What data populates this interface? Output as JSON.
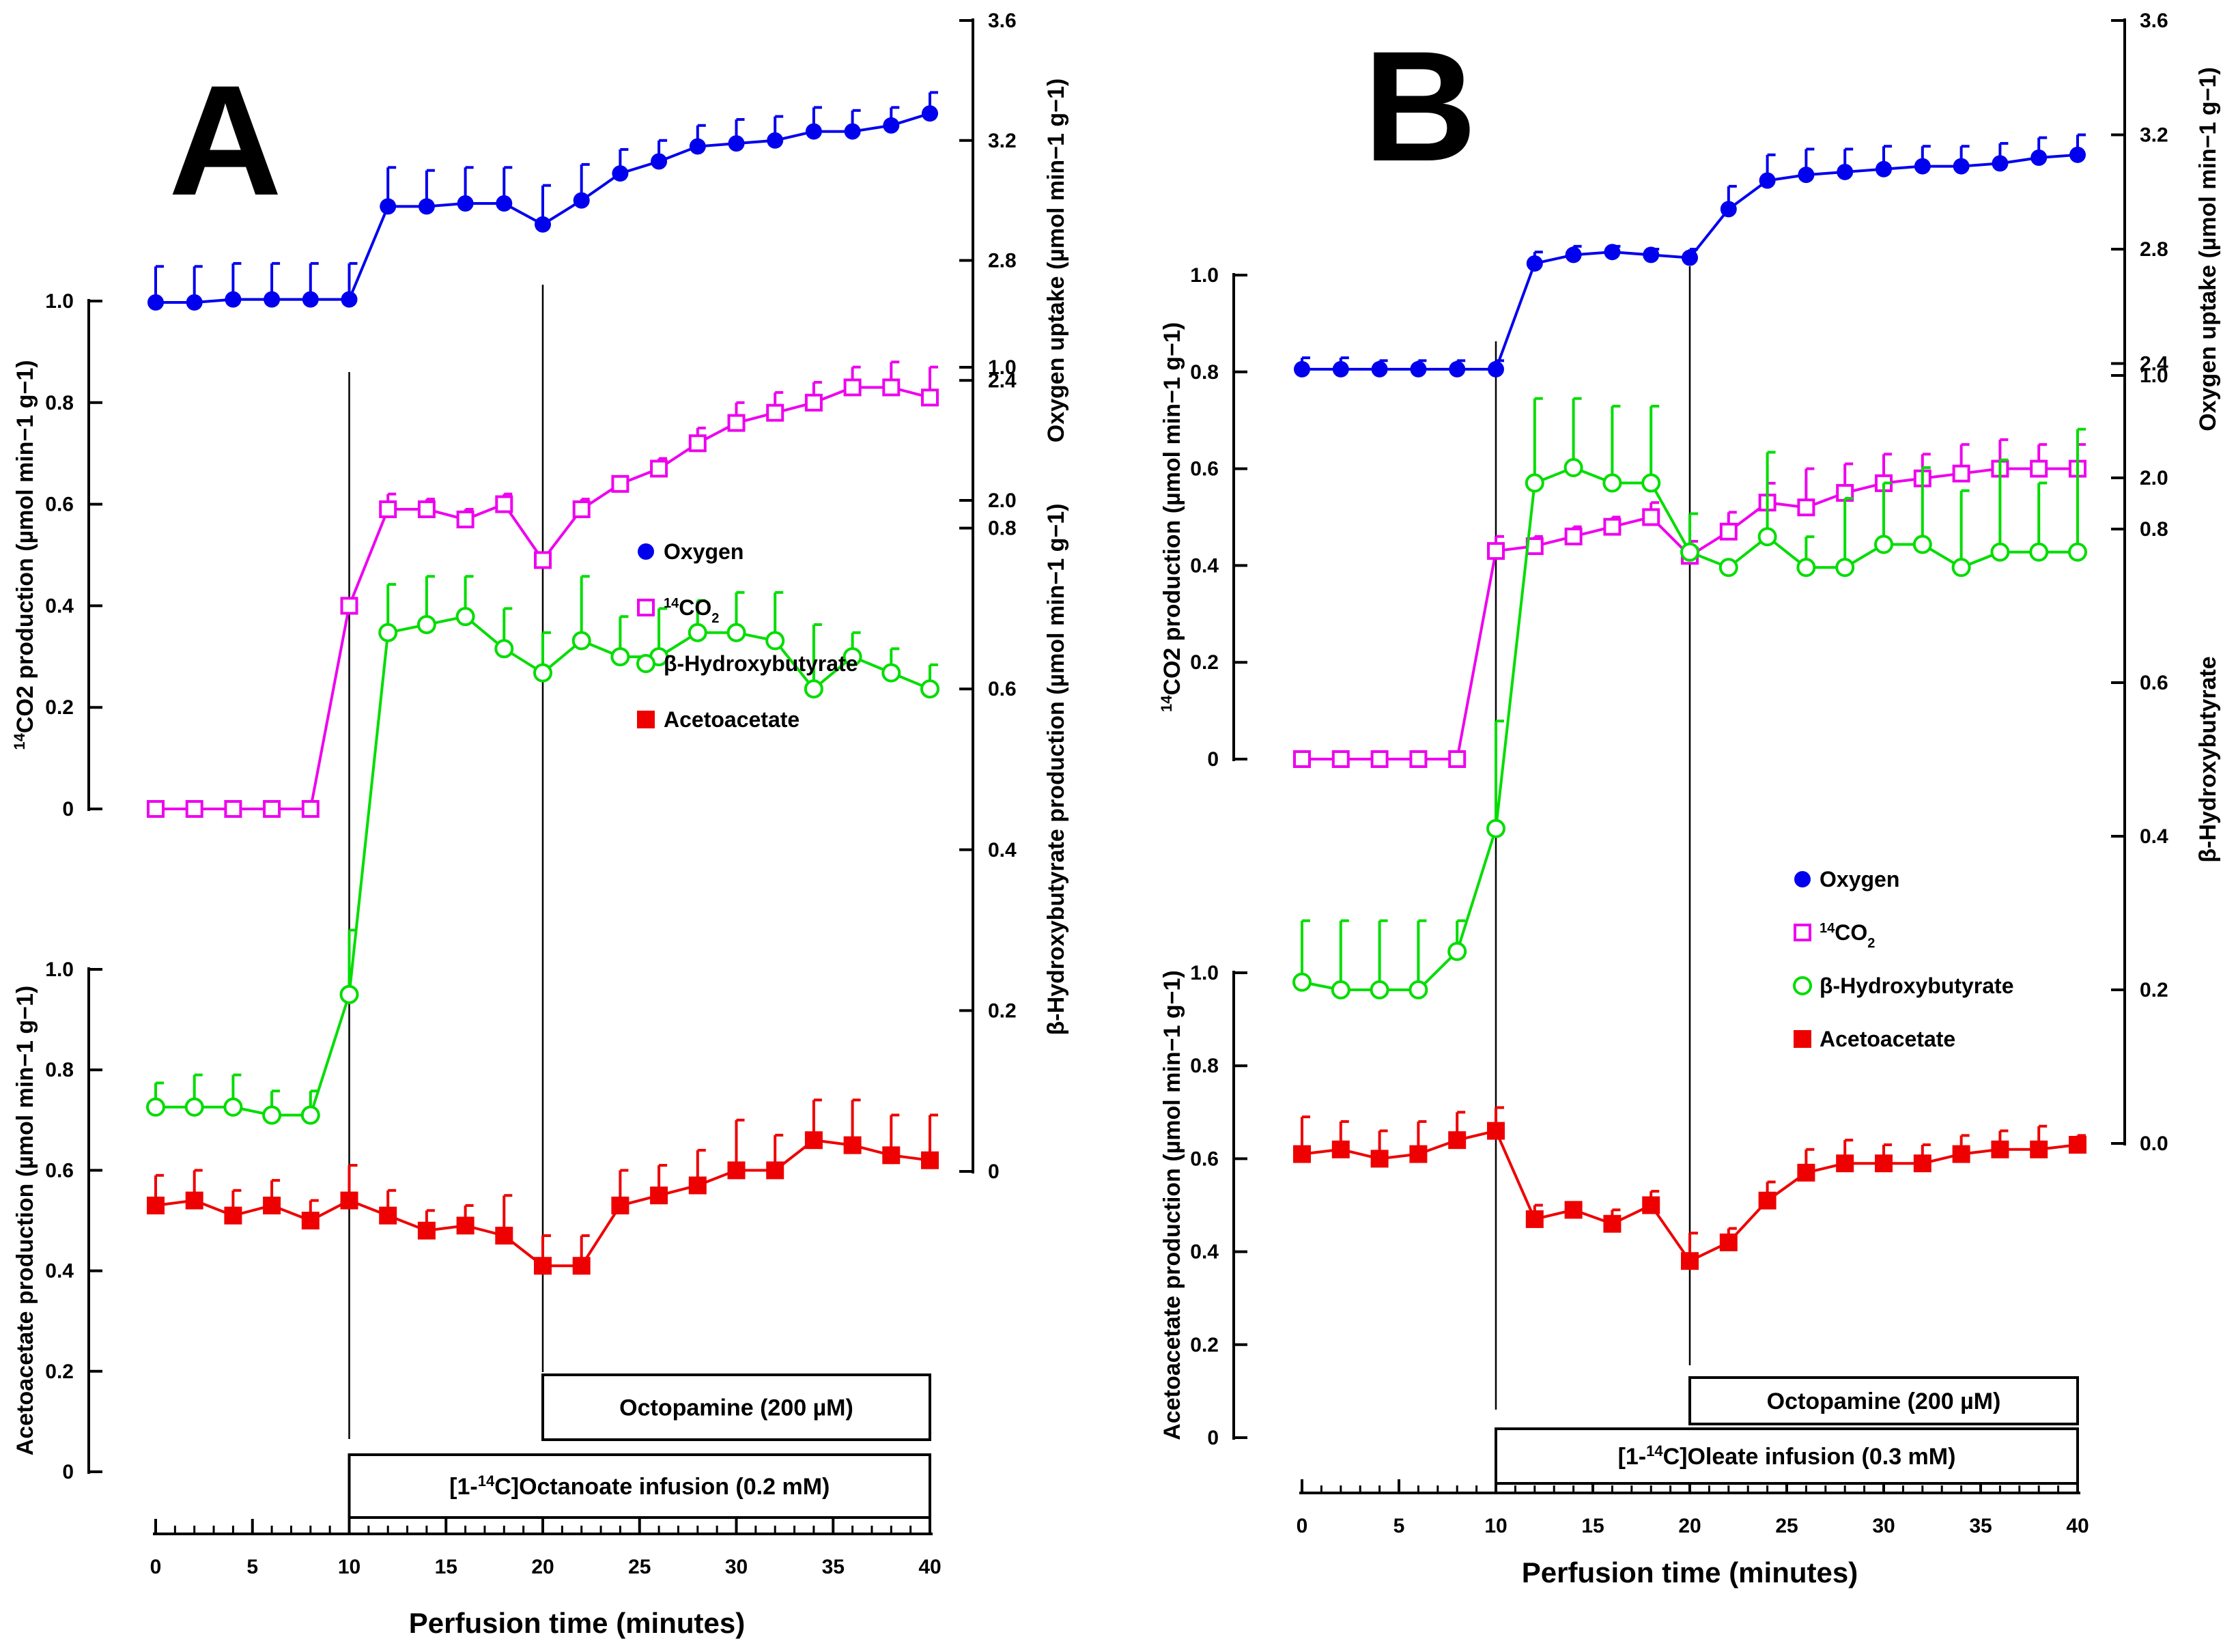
{
  "colors": {
    "oxygen": "#0000ee",
    "co2": "#ee00ee",
    "hydroxybutyrate": "#00dd00",
    "acetoacetate": "#ee0000"
  },
  "chart_data": [
    {
      "type": "line",
      "panel": "A",
      "xlabel": "Perfusion time (minutes)",
      "xlim": [
        0,
        40
      ],
      "x_ticks": [
        "0",
        "5",
        "10",
        "15",
        "20",
        "25",
        "30",
        "35",
        "40"
      ],
      "axes": {
        "co2": {
          "label_pre": "14",
          "label_main": "CO2 production (µmol min−1 g−1)",
          "ylim": [
            0,
            1.0
          ],
          "ticks": [
            "0",
            "0.2",
            "0.4",
            "0.6",
            "0.8",
            "1.0"
          ]
        },
        "oxygen": {
          "label": "Oxygen uptake (µmol min−1 g−1)",
          "ylim": [
            2.0,
            3.6
          ],
          "ticks": [
            "2.0",
            "2.4",
            "2.8",
            "3.2",
            "3.6"
          ]
        },
        "hydroxybutyrate": {
          "label": "β-Hydroxybutyrate production (µmol min−1 g−1)",
          "ylim": [
            0,
            1.0
          ],
          "ticks": [
            "0",
            "0.2",
            "0.4",
            "0.6",
            "0.8",
            "1.0"
          ]
        },
        "acetoacetate": {
          "label": "Acetoacetate production (µmol min−1 g−1)",
          "ylim": [
            0,
            1.0
          ],
          "ticks": [
            "0",
            "0.2",
            "0.4",
            "0.6",
            "0.8",
            "1.0"
          ]
        }
      },
      "x": [
        0,
        2,
        4,
        6,
        8,
        10,
        12,
        14,
        16,
        18,
        20,
        22,
        24,
        26,
        28,
        30,
        32,
        34,
        36,
        38,
        40
      ],
      "series": [
        {
          "name": "Oxygen",
          "key": "oxygen",
          "marker": "circle-filled",
          "values": [
            2.66,
            2.66,
            2.67,
            2.67,
            2.67,
            2.67,
            2.98,
            2.98,
            2.99,
            2.99,
            2.92,
            3.0,
            3.09,
            3.13,
            3.18,
            3.19,
            3.2,
            3.23,
            3.23,
            3.25,
            3.29
          ],
          "errors": [
            0.12,
            0.12,
            0.12,
            0.12,
            0.12,
            0.12,
            0.13,
            0.12,
            0.12,
            0.12,
            0.13,
            0.12,
            0.08,
            0.07,
            0.07,
            0.08,
            0.08,
            0.08,
            0.07,
            0.06,
            0.07
          ]
        },
        {
          "name": "14CO2",
          "key": "co2",
          "marker": "square-open",
          "values": [
            0,
            0,
            0,
            0,
            0,
            0.4,
            0.59,
            0.59,
            0.57,
            0.6,
            0.49,
            0.59,
            0.64,
            0.67,
            0.72,
            0.76,
            0.78,
            0.8,
            0.83,
            0.83,
            0.81
          ],
          "errors": [
            0,
            0,
            0,
            0,
            0,
            0,
            0.03,
            0.02,
            0.02,
            0.02,
            0,
            0.02,
            0.01,
            0.02,
            0.03,
            0.04,
            0.04,
            0.04,
            0.04,
            0.05,
            0.06
          ]
        },
        {
          "name": "β-Hydroxybutyrate",
          "key": "hydroxybutyrate",
          "marker": "circle-open",
          "values": [
            0.08,
            0.08,
            0.08,
            0.07,
            0.07,
            0.22,
            0.67,
            0.68,
            0.69,
            0.65,
            0.62,
            0.66,
            0.64,
            0.64,
            0.67,
            0.67,
            0.66,
            0.6,
            0.64,
            0.62,
            0.6
          ],
          "errors": [
            0.03,
            0.04,
            0.04,
            0.03,
            0.03,
            0.08,
            0.06,
            0.06,
            0.05,
            0.05,
            0.05,
            0.08,
            0.05,
            0.06,
            0.04,
            0.05,
            0.06,
            0.08,
            0.03,
            0.03,
            0.03
          ]
        },
        {
          "name": "Acetoacetate",
          "key": "acetoacetate",
          "marker": "square-filled",
          "values": [
            0.53,
            0.54,
            0.51,
            0.53,
            0.5,
            0.54,
            0.51,
            0.48,
            0.49,
            0.47,
            0.41,
            0.41,
            0.53,
            0.55,
            0.57,
            0.6,
            0.6,
            0.66,
            0.65,
            0.63,
            0.62
          ],
          "errors": [
            0.06,
            0.06,
            0.05,
            0.05,
            0.04,
            0.07,
            0.05,
            0.04,
            0.04,
            0.08,
            0.06,
            0.06,
            0.07,
            0.06,
            0.07,
            0.1,
            0.07,
            0.08,
            0.09,
            0.08,
            0.09
          ]
        }
      ],
      "annotations": [
        {
          "label_pre": "[1-",
          "label_sup": "14",
          "label_post": "C]Octanoate infusion (0.2 mM)",
          "from": 10,
          "to": 40
        },
        {
          "label": "Octopamine (200 µM)",
          "from": 20,
          "to": 40
        }
      ]
    },
    {
      "type": "line",
      "panel": "B",
      "xlabel": "Perfusion time (minutes)",
      "xlim": [
        0,
        40
      ],
      "x_ticks": [
        "0",
        "5",
        "10",
        "15",
        "20",
        "25",
        "30",
        "35",
        "40"
      ],
      "axes": {
        "co2": {
          "label_pre": "14",
          "label_main": "CO2 production (µmol min−1 g−1)",
          "ylim": [
            0,
            1.0
          ],
          "ticks": [
            "0",
            "0.2",
            "0.4",
            "0.6",
            "0.8",
            "1.0"
          ]
        },
        "oxygen": {
          "label": "Oxygen uptake (µmol min−1 g−1)",
          "ylim": [
            2.0,
            3.6
          ],
          "ticks": [
            "2.0",
            "2.4",
            "2.8",
            "3.2",
            "3.6"
          ]
        },
        "hydroxybutyrate": {
          "label": "β-Hydroxybutyrate",
          "ylim": [
            0,
            1.0
          ],
          "ticks": [
            "0.0",
            "0.2",
            "0.4",
            "0.6",
            "0.8",
            "1.0"
          ]
        },
        "acetoacetate": {
          "label": "Acetoacetate production (µmol min−1 g−1)",
          "ylim": [
            0,
            1.0
          ],
          "ticks": [
            "0",
            "0.2",
            "0.4",
            "0.6",
            "0.8",
            "1.0"
          ]
        }
      },
      "x": [
        0,
        2,
        4,
        6,
        8,
        10,
        12,
        14,
        16,
        18,
        20,
        22,
        24,
        26,
        28,
        30,
        32,
        34,
        36,
        38,
        40
      ],
      "series": [
        {
          "name": "Oxygen",
          "key": "oxygen",
          "marker": "circle-filled",
          "values": [
            2.38,
            2.38,
            2.38,
            2.38,
            2.38,
            2.38,
            2.75,
            2.78,
            2.79,
            2.78,
            2.77,
            2.94,
            3.04,
            3.06,
            3.07,
            3.08,
            3.09,
            3.09,
            3.1,
            3.12,
            3.13
          ],
          "errors": [
            0.04,
            0.04,
            0.03,
            0.03,
            0.03,
            0.03,
            0.04,
            0.03,
            0.02,
            0.02,
            0.03,
            0.08,
            0.09,
            0.09,
            0.08,
            0.08,
            0.07,
            0.07,
            0.07,
            0.07,
            0.07
          ]
        },
        {
          "name": "14CO2",
          "key": "co2",
          "marker": "square-open",
          "values": [
            0,
            0,
            0,
            0,
            0,
            0.43,
            0.44,
            0.46,
            0.48,
            0.5,
            0.42,
            0.47,
            0.53,
            0.52,
            0.55,
            0.57,
            0.58,
            0.59,
            0.6,
            0.6,
            0.6
          ],
          "errors": [
            0,
            0,
            0,
            0,
            0,
            0.03,
            0.02,
            0.02,
            0.02,
            0.03,
            0.03,
            0.04,
            0.04,
            0.08,
            0.06,
            0.06,
            0.05,
            0.06,
            0.06,
            0.05,
            0.05
          ]
        },
        {
          "name": "β-Hydroxybutyrate",
          "key": "hydroxybutyrate",
          "marker": "circle-open",
          "values": [
            0.21,
            0.2,
            0.2,
            0.2,
            0.25,
            0.41,
            0.86,
            0.88,
            0.86,
            0.86,
            0.77,
            0.75,
            0.79,
            0.75,
            0.75,
            0.78,
            0.78,
            0.75,
            0.77,
            0.77,
            0.77
          ],
          "errors": [
            0.08,
            0.09,
            0.09,
            0.09,
            0.04,
            0.14,
            0.11,
            0.09,
            0.1,
            0.1,
            0.05,
            0,
            0.11,
            0.04,
            0.09,
            0.08,
            0.1,
            0.1,
            0.12,
            0.09,
            0.16
          ]
        },
        {
          "name": "Acetoacetate",
          "key": "acetoacetate",
          "marker": "square-filled",
          "values": [
            0.61,
            0.62,
            0.6,
            0.61,
            0.64,
            0.66,
            0.47,
            0.49,
            0.46,
            0.5,
            0.38,
            0.42,
            0.51,
            0.57,
            0.59,
            0.59,
            0.59,
            0.61,
            0.62,
            0.62,
            0.63
          ],
          "errors": [
            0.08,
            0.06,
            0.06,
            0.07,
            0.06,
            0.05,
            0.03,
            0,
            0.03,
            0.03,
            0.06,
            0.03,
            0.04,
            0.05,
            0.05,
            0.04,
            0.04,
            0.04,
            0.04,
            0.05,
            0.02
          ]
        }
      ],
      "annotations": [
        {
          "label_pre": "[1-",
          "label_sup": "14",
          "label_post": "C]Oleate infusion (0.3 mM)",
          "from": 10,
          "to": 40
        },
        {
          "label": "Octopamine (200 µM)",
          "from": 20,
          "to": 40
        }
      ]
    }
  ],
  "legend": {
    "items": [
      {
        "key": "oxygen",
        "label": "Oxygen"
      },
      {
        "key": "co2",
        "label_pre": "14",
        "label_main": "CO",
        "label_sub": "2"
      },
      {
        "key": "hydroxybutyrate",
        "label": "β-Hydroxybutyrate"
      },
      {
        "key": "acetoacetate",
        "label": "Acetoacetate"
      }
    ]
  }
}
